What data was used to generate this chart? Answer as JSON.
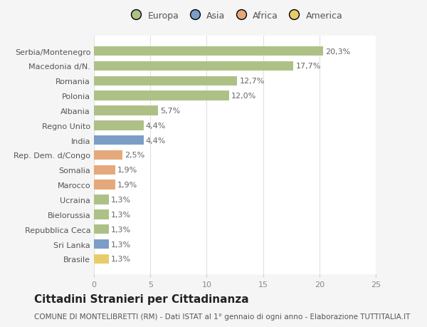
{
  "categories": [
    "Serbia/Montenegro",
    "Macedonia d/N.",
    "Romania",
    "Polonia",
    "Albania",
    "Regno Unito",
    "India",
    "Rep. Dem. d/Congo",
    "Somalia",
    "Marocco",
    "Ucraina",
    "Bielorussia",
    "Repubblica Ceca",
    "Sri Lanka",
    "Brasile"
  ],
  "values": [
    20.3,
    17.7,
    12.7,
    12.0,
    5.7,
    4.4,
    4.4,
    2.5,
    1.9,
    1.9,
    1.3,
    1.3,
    1.3,
    1.3,
    1.3
  ],
  "labels": [
    "20,3%",
    "17,7%",
    "12,7%",
    "12,0%",
    "5,7%",
    "4,4%",
    "4,4%",
    "2,5%",
    "1,9%",
    "1,9%",
    "1,3%",
    "1,3%",
    "1,3%",
    "1,3%",
    "1,3%"
  ],
  "bar_colors": [
    "#adc186",
    "#adc186",
    "#adc186",
    "#adc186",
    "#adc186",
    "#adc186",
    "#7a9ec5",
    "#e5a87a",
    "#e5a87a",
    "#e5a87a",
    "#adc186",
    "#adc186",
    "#adc186",
    "#7a9ec5",
    "#e8cc6a"
  ],
  "legend_labels": [
    "Europa",
    "Asia",
    "Africa",
    "America"
  ],
  "legend_colors": [
    "#adc186",
    "#7a9ec5",
    "#e5a87a",
    "#e8cc6a"
  ],
  "title": "Cittadini Stranieri per Cittadinanza",
  "subtitle": "COMUNE DI MONTELIBRETTI (RM) - Dati ISTAT al 1° gennaio di ogni anno - Elaborazione TUTTITALIA.IT",
  "xlim": [
    0,
    25
  ],
  "xticks": [
    0,
    5,
    10,
    15,
    20,
    25
  ],
  "background_color": "#f5f5f5",
  "bar_bg_color": "#ffffff",
  "grid_color": "#e0e0e0",
  "title_fontsize": 11,
  "subtitle_fontsize": 7.5,
  "label_fontsize": 8,
  "tick_fontsize": 8,
  "legend_fontsize": 9
}
